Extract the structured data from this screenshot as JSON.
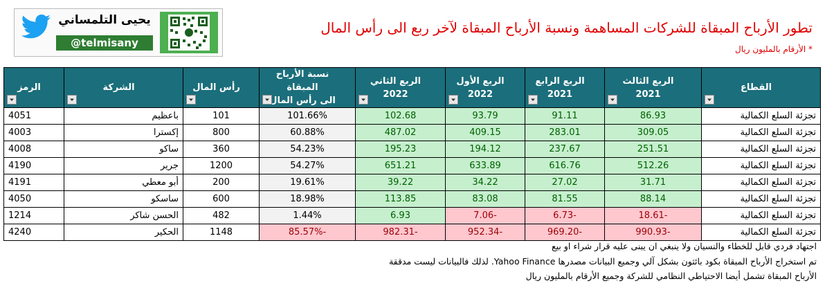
{
  "header": {
    "title": "تطور الأرباح المبقاة للشركات المساهمة ونسبة الأرباح المبقاة لآخر ربع الى رأس المال",
    "note": "* الأرقام بالمليون ريال"
  },
  "logo": {
    "name": "يحيى التلمساني",
    "handle": "@telmisany"
  },
  "table": {
    "columns": [
      {
        "title": "القطاع"
      },
      {
        "title": "الربع الثالث",
        "sub": "2021"
      },
      {
        "title": "الربع الرابع",
        "sub": "2021"
      },
      {
        "title": "الربع الأول",
        "sub": "2022"
      },
      {
        "title": "الربع الثاني",
        "sub": "2022"
      },
      {
        "title": "نسبة الأرباح المبقاة",
        "sub": "الى رأس المال"
      },
      {
        "title": "رأس المال"
      },
      {
        "title": "الشركة"
      },
      {
        "title": "الرمز"
      }
    ],
    "rows": [
      [
        "تجزئة السلع الكمالية",
        "86.93",
        "91.11",
        "93.79",
        "102.68",
        "101.66%",
        "101",
        "باعظيم",
        "4051"
      ],
      [
        "تجزئة السلع الكمالية",
        "309.05",
        "283.01",
        "409.15",
        "487.02",
        "60.88%",
        "800",
        "إكسترا",
        "4003"
      ],
      [
        "تجزئة السلع الكمالية",
        "251.51",
        "237.67",
        "194.12",
        "195.23",
        "54.23%",
        "360",
        "ساكو",
        "4008"
      ],
      [
        "تجزئة السلع الكمالية",
        "512.26",
        "616.76",
        "633.89",
        "651.21",
        "54.27%",
        "1200",
        "جرير",
        "4190"
      ],
      [
        "تجزئة السلع الكمالية",
        "31.71",
        "27.02",
        "34.22",
        "39.22",
        "19.61%",
        "200",
        "أبو معطي",
        "4191"
      ],
      [
        "تجزئة السلع الكمالية",
        "88.14",
        "81.55",
        "83.08",
        "113.85",
        "18.98%",
        "600",
        "ساسكو",
        "4050"
      ],
      [
        "تجزئة السلع الكمالية",
        "-18.61",
        "-6.73",
        "-7.06",
        "6.93",
        "1.44%",
        "482",
        "الحسن شاكر",
        "1214"
      ],
      [
        "تجزئة السلع الكمالية",
        "-990.93",
        "-969.20",
        "-952.34",
        "-982.31",
        "-85.57%",
        "1148",
        "الحكير",
        "4240"
      ]
    ]
  },
  "footer": [
    "اجتهاد فردي قابل للخطاء والنسيان ولا ينبغي ان يبنى عليه قرار شراء او بيع",
    "تم استخراج الأرباح المبقاة بكود بائثون بشكل آلي وجميع البيانات مصدرها Yahoo Finance. لذلك فالبيانات ليست مدققة",
    "الأرباح المبقاة تشمل أيضا الاحتياطي النظامي للشركة وجميع الأرقام بالمليون ريال"
  ]
}
